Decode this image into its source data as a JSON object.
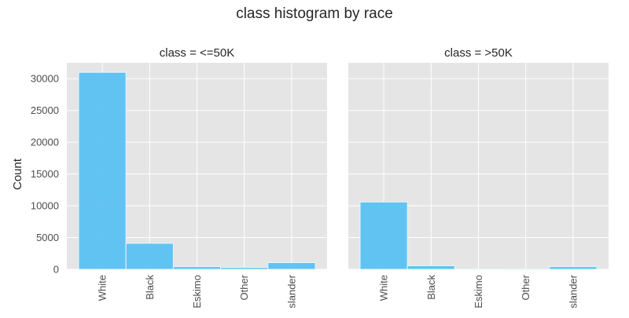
{
  "chart_data": {
    "type": "bar",
    "title": "class histogram by race",
    "ylabel": "Count",
    "ylim": [
      0,
      32500
    ],
    "yticks": [
      0,
      5000,
      10000,
      15000,
      20000,
      25000,
      30000
    ],
    "grid": true,
    "categories": [
      "White",
      "Black",
      "Eskimo",
      "Other",
      "Islander"
    ],
    "category_labels": [
      "White",
      "Black",
      "Eskimo",
      "Other",
      "slander"
    ],
    "panels": [
      {
        "title": "class = <=50K",
        "values": [
          31000,
          4100,
          420,
          300,
          1050
        ]
      },
      {
        "title": "class = >50K",
        "values": [
          10600,
          560,
          40,
          30,
          420
        ]
      }
    ],
    "colors": {
      "bar": "#5ac1f2",
      "bar_edge": "#e8f6fd",
      "panel_bg": "#e5e5e5",
      "grid": "#ffffff",
      "text": "#262626",
      "tick_text": "#4d4d4d"
    }
  }
}
